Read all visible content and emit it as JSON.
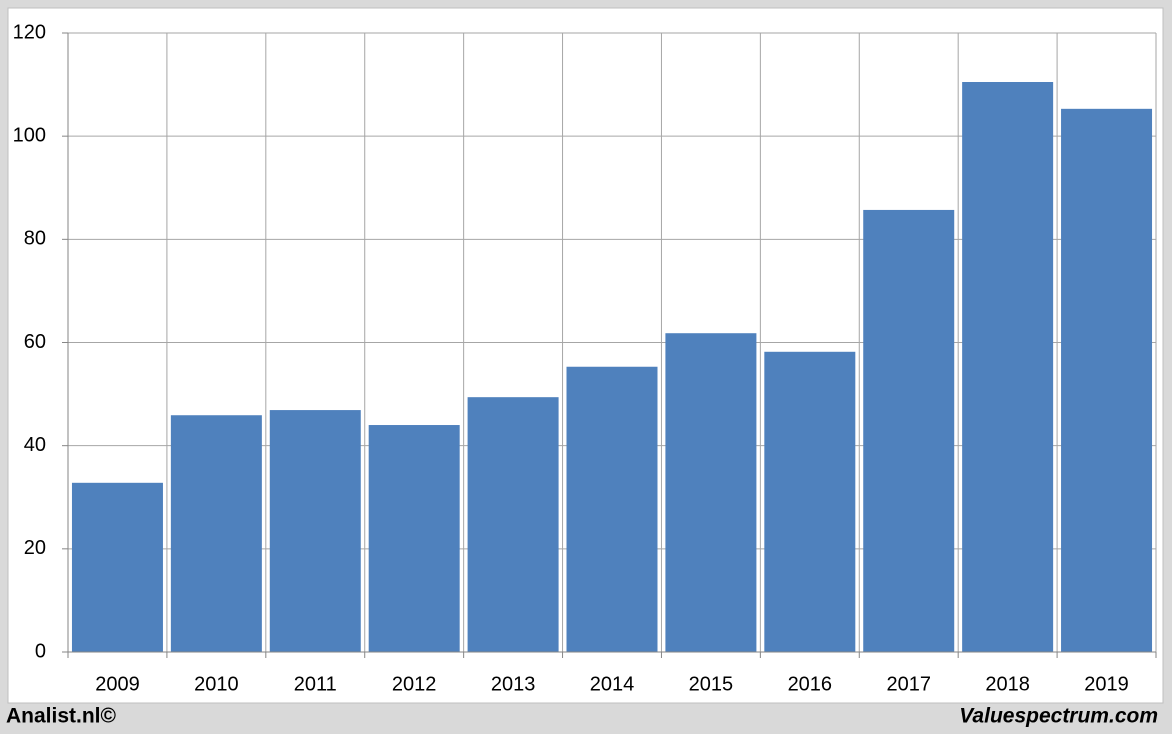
{
  "chart_data": {
    "type": "bar",
    "categories": [
      "2009",
      "2010",
      "2011",
      "2012",
      "2013",
      "2014",
      "2015",
      "2016",
      "2017",
      "2018",
      "2019"
    ],
    "values": [
      32.8,
      45.9,
      46.9,
      44,
      49.4,
      55.3,
      61.8,
      58.2,
      85.7,
      110.5,
      105.3
    ],
    "color": "#4f81bd",
    "ylim": [
      0,
      120
    ],
    "yticks": [
      0,
      20,
      40,
      60,
      80,
      100,
      120
    ],
    "grid": true,
    "credit_left": "Analist.nl©",
    "credit_right": "Valuespectrum.com"
  }
}
